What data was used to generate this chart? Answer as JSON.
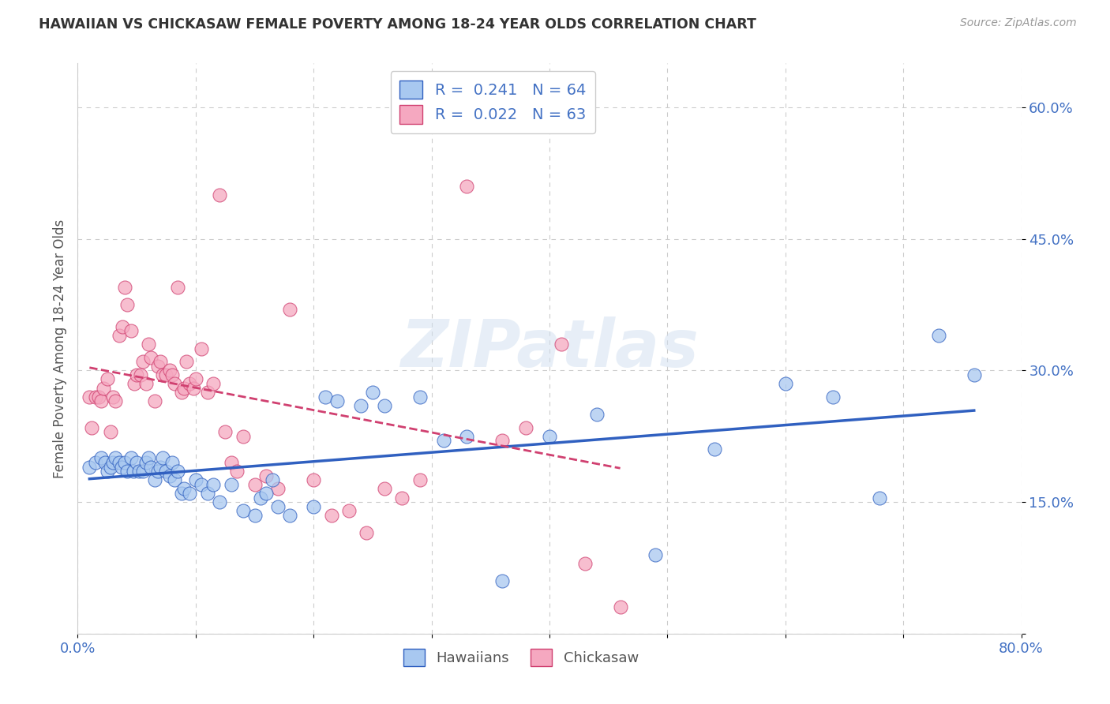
{
  "title": "HAWAIIAN VS CHICKASAW FEMALE POVERTY AMONG 18-24 YEAR OLDS CORRELATION CHART",
  "source": "Source: ZipAtlas.com",
  "ylabel": "Female Poverty Among 18-24 Year Olds",
  "xlim": [
    0,
    0.8
  ],
  "ylim": [
    0,
    0.65
  ],
  "hawaiian_color": "#a8c8f0",
  "chickasaw_color": "#f5a8c0",
  "hawaiian_line_color": "#3060c0",
  "chickasaw_line_color": "#d04070",
  "hawaiian_R": 0.241,
  "hawaiian_N": 64,
  "chickasaw_R": 0.022,
  "chickasaw_N": 63,
  "watermark": "ZIPatlas",
  "background_color": "#ffffff",
  "grid_color": "#cccccc",
  "hawaiian_x": [
    0.01,
    0.015,
    0.02,
    0.023,
    0.025,
    0.028,
    0.03,
    0.032,
    0.035,
    0.037,
    0.04,
    0.042,
    0.045,
    0.047,
    0.05,
    0.052,
    0.055,
    0.058,
    0.06,
    0.062,
    0.065,
    0.068,
    0.07,
    0.072,
    0.075,
    0.078,
    0.08,
    0.082,
    0.085,
    0.088,
    0.09,
    0.095,
    0.1,
    0.105,
    0.11,
    0.115,
    0.12,
    0.13,
    0.14,
    0.15,
    0.155,
    0.16,
    0.165,
    0.17,
    0.18,
    0.2,
    0.21,
    0.22,
    0.24,
    0.25,
    0.26,
    0.29,
    0.31,
    0.33,
    0.36,
    0.4,
    0.44,
    0.49,
    0.54,
    0.6,
    0.64,
    0.68,
    0.73,
    0.76
  ],
  "hawaiian_y": [
    0.19,
    0.195,
    0.2,
    0.195,
    0.185,
    0.19,
    0.195,
    0.2,
    0.195,
    0.19,
    0.195,
    0.185,
    0.2,
    0.185,
    0.195,
    0.185,
    0.185,
    0.195,
    0.2,
    0.19,
    0.175,
    0.185,
    0.19,
    0.2,
    0.185,
    0.18,
    0.195,
    0.175,
    0.185,
    0.16,
    0.165,
    0.16,
    0.175,
    0.17,
    0.16,
    0.17,
    0.15,
    0.17,
    0.14,
    0.135,
    0.155,
    0.16,
    0.175,
    0.145,
    0.135,
    0.145,
    0.27,
    0.265,
    0.26,
    0.275,
    0.26,
    0.27,
    0.22,
    0.225,
    0.06,
    0.225,
    0.25,
    0.09,
    0.21,
    0.285,
    0.27,
    0.155,
    0.34,
    0.295
  ],
  "chickasaw_x": [
    0.01,
    0.012,
    0.015,
    0.018,
    0.02,
    0.022,
    0.025,
    0.028,
    0.03,
    0.032,
    0.035,
    0.038,
    0.04,
    0.042,
    0.045,
    0.048,
    0.05,
    0.053,
    0.055,
    0.058,
    0.06,
    0.062,
    0.065,
    0.068,
    0.07,
    0.072,
    0.075,
    0.078,
    0.08,
    0.082,
    0.085,
    0.088,
    0.09,
    0.092,
    0.095,
    0.098,
    0.1,
    0.105,
    0.11,
    0.115,
    0.12,
    0.125,
    0.13,
    0.135,
    0.14,
    0.15,
    0.16,
    0.17,
    0.18,
    0.2,
    0.215,
    0.23,
    0.245,
    0.26,
    0.275,
    0.29,
    0.31,
    0.33,
    0.36,
    0.38,
    0.41,
    0.43,
    0.46
  ],
  "chickasaw_y": [
    0.27,
    0.235,
    0.27,
    0.27,
    0.265,
    0.28,
    0.29,
    0.23,
    0.27,
    0.265,
    0.34,
    0.35,
    0.395,
    0.375,
    0.345,
    0.285,
    0.295,
    0.295,
    0.31,
    0.285,
    0.33,
    0.315,
    0.265,
    0.305,
    0.31,
    0.295,
    0.295,
    0.3,
    0.295,
    0.285,
    0.395,
    0.275,
    0.28,
    0.31,
    0.285,
    0.28,
    0.29,
    0.325,
    0.275,
    0.285,
    0.5,
    0.23,
    0.195,
    0.185,
    0.225,
    0.17,
    0.18,
    0.165,
    0.37,
    0.175,
    0.135,
    0.14,
    0.115,
    0.165,
    0.155,
    0.175,
    0.605,
    0.51,
    0.22,
    0.235,
    0.33,
    0.08,
    0.03
  ]
}
